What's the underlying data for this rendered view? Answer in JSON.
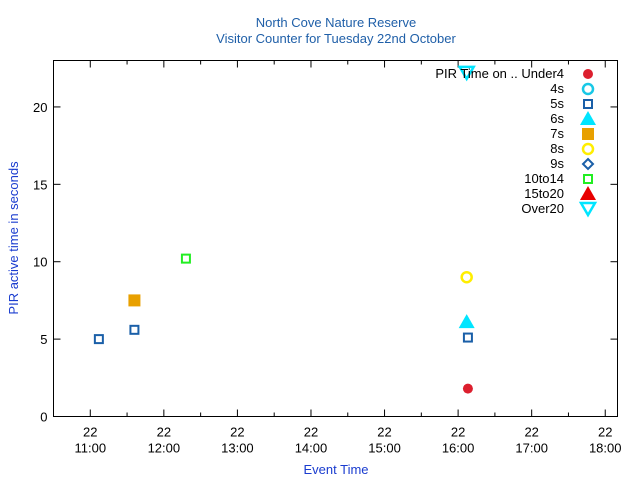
{
  "chart_data": {
    "type": "scatter",
    "title": "North Cove Nature Reserve",
    "subtitle": "Visitor Counter for Tuesday 22nd October",
    "xlabel": "Event Time",
    "ylabel": "PIR active time in seconds",
    "x_axis": "time",
    "xlim": [
      "10:30",
      "18:10"
    ],
    "ylim": [
      0,
      23
    ],
    "yticks": [
      0,
      5,
      10,
      15,
      20
    ],
    "xticks": [
      {
        "value": "11:00",
        "day": "22",
        "time": "11:00"
      },
      {
        "value": "12:00",
        "day": "22",
        "time": "12:00"
      },
      {
        "value": "13:00",
        "day": "22",
        "time": "13:00"
      },
      {
        "value": "14:00",
        "day": "22",
        "time": "14:00"
      },
      {
        "value": "15:00",
        "day": "22",
        "time": "15:00"
      },
      {
        "value": "16:00",
        "day": "22",
        "time": "16:00"
      },
      {
        "value": "17:00",
        "day": "22",
        "time": "17:00"
      },
      {
        "value": "18:00",
        "day": "22",
        "time": "18:00"
      }
    ],
    "grid": false,
    "legend_title": "PIR Time on ..",
    "legend_position": "top-right",
    "series": [
      {
        "name": "Under4",
        "marker": "circle-filled",
        "color": "#dc1f2e",
        "points": [
          {
            "x": "16:08",
            "y": 1.8
          }
        ]
      },
      {
        "name": "4s",
        "marker": "circle-open",
        "color": "#18c8e6",
        "points": []
      },
      {
        "name": "5s",
        "marker": "square-open",
        "color": "#1a5fa8",
        "points": [
          {
            "x": "11:07",
            "y": 5.0
          },
          {
            "x": "11:36",
            "y": 5.6
          },
          {
            "x": "16:08",
            "y": 5.1
          }
        ]
      },
      {
        "name": "6s",
        "marker": "triangle-up-filled",
        "color": "#00e5ff",
        "points": [
          {
            "x": "16:07",
            "y": 6.1
          }
        ]
      },
      {
        "name": "7s",
        "marker": "square-filled",
        "color": "#e8a000",
        "points": [
          {
            "x": "11:36",
            "y": 7.5
          }
        ]
      },
      {
        "name": "8s",
        "marker": "circle-open",
        "color": "#ffee00",
        "points": [
          {
            "x": "16:07",
            "y": 9.0
          }
        ]
      },
      {
        "name": "9s",
        "marker": "diamond-open",
        "color": "#1a5fa8",
        "points": []
      },
      {
        "name": "10to14",
        "marker": "square-open",
        "color": "#22ee22",
        "points": [
          {
            "x": "12:18",
            "y": 10.2
          }
        ]
      },
      {
        "name": "15to20",
        "marker": "triangle-up-filled",
        "color": "#e80000",
        "points": []
      },
      {
        "name": "Over20",
        "marker": "triangle-down-open",
        "color": "#00e5ff",
        "points": [
          {
            "x": "16:07",
            "y": 22.2
          }
        ]
      }
    ]
  }
}
